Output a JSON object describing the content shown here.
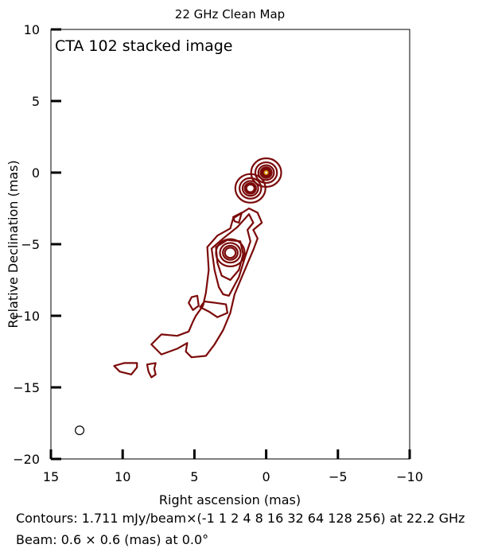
{
  "chart_data": {
    "type": "contour",
    "title": "22 GHz Clean Map",
    "annotation": "CTA 102 stacked image",
    "xlabel": "Right ascension (mas)",
    "ylabel": "Relative Declination (mas)",
    "xlim": [
      15,
      -10
    ],
    "ylim": [
      -20,
      10
    ],
    "xticks": [
      15,
      10,
      5,
      0,
      -5,
      -10
    ],
    "xtick_labels": [
      "15",
      "10",
      "5",
      "0",
      "−5",
      "−10"
    ],
    "yticks": [
      10,
      5,
      0,
      -5,
      -10,
      -15,
      -20
    ],
    "ytick_labels": [
      "10",
      "5",
      "0",
      "−5",
      "−10",
      "−15",
      "−20"
    ],
    "contour_base_mJy_per_beam": 1.711,
    "contour_levels": [
      -1,
      1,
      2,
      4,
      8,
      16,
      32,
      64,
      128,
      256
    ],
    "frequency_GHz": 22.2,
    "beam": {
      "major_mas": 0.6,
      "minor_mas": 0.6,
      "pa_deg": 0.0,
      "x": 13,
      "y": -18
    },
    "contour_color": "#7b0a0a",
    "peak_color": "#e0a000",
    "components": [
      {
        "x": 0.0,
        "y": 0.0,
        "rings": 7,
        "rmax": 1.05
      },
      {
        "x": 1.1,
        "y": -1.1,
        "rings": 5,
        "rmax": 1.05
      },
      {
        "x": 2.5,
        "y": -5.6,
        "rings": 4,
        "rmax": 1.0
      }
    ],
    "jet_contours": [
      [
        [
          2.3,
          -3.2
        ],
        [
          1.2,
          -2.5
        ],
        [
          0.6,
          -2.8
        ],
        [
          0.3,
          -3.5
        ],
        [
          0.9,
          -4.0
        ],
        [
          0.6,
          -4.6
        ],
        [
          0.9,
          -5.4
        ],
        [
          1.7,
          -7.3
        ],
        [
          2.2,
          -8.5
        ],
        [
          2.5,
          -9.8
        ],
        [
          3.0,
          -11.0
        ],
        [
          3.6,
          -12.0
        ],
        [
          4.2,
          -12.8
        ],
        [
          5.2,
          -12.9
        ],
        [
          5.6,
          -12.5
        ],
        [
          5.5,
          -11.9
        ],
        [
          6.2,
          -12.3
        ],
        [
          7.3,
          -12.7
        ],
        [
          8.0,
          -12.0
        ],
        [
          7.3,
          -11.3
        ],
        [
          6.2,
          -11.4
        ],
        [
          5.4,
          -11.1
        ],
        [
          5.1,
          -10.4
        ],
        [
          4.9,
          -10.0
        ],
        [
          4.4,
          -9.3
        ],
        [
          4.2,
          -8.4
        ],
        [
          4.0,
          -6.8
        ],
        [
          4.1,
          -5.2
        ],
        [
          3.4,
          -4.4
        ],
        [
          2.5,
          -3.9
        ],
        [
          2.3,
          -3.2
        ]
      ],
      [
        [
          1.2,
          -2.9
        ],
        [
          0.9,
          -3.5
        ],
        [
          1.3,
          -4.0
        ],
        [
          1.1,
          -4.8
        ],
        [
          1.5,
          -6.0
        ],
        [
          1.9,
          -7.3
        ],
        [
          2.6,
          -8.6
        ],
        [
          3.0,
          -8.5
        ],
        [
          3.3,
          -8.0
        ],
        [
          3.6,
          -6.8
        ],
        [
          3.8,
          -5.3
        ],
        [
          3.0,
          -4.6
        ],
        [
          2.0,
          -3.8
        ],
        [
          1.2,
          -2.9
        ]
      ],
      [
        [
          1.8,
          -4.8
        ],
        [
          1.6,
          -5.7
        ],
        [
          1.9,
          -6.8
        ],
        [
          2.5,
          -7.5
        ],
        [
          3.1,
          -7.2
        ],
        [
          3.4,
          -6.3
        ],
        [
          3.5,
          -5.2
        ],
        [
          2.7,
          -4.7
        ],
        [
          1.8,
          -4.8
        ]
      ],
      [
        [
          2.8,
          -9.2
        ],
        [
          3.5,
          -9.1
        ],
        [
          4.3,
          -9.0
        ],
        [
          4.6,
          -9.4
        ],
        [
          4.0,
          -9.7
        ],
        [
          3.4,
          -10.1
        ],
        [
          2.7,
          -9.8
        ],
        [
          2.8,
          -9.2
        ]
      ],
      [
        [
          4.8,
          -8.6
        ],
        [
          5.2,
          -8.7
        ],
        [
          5.4,
          -9.1
        ],
        [
          5.1,
          -9.6
        ],
        [
          4.7,
          -9.3
        ],
        [
          4.8,
          -8.6
        ]
      ],
      [
        [
          9.0,
          -13.3
        ],
        [
          9.9,
          -13.3
        ],
        [
          10.6,
          -13.5
        ],
        [
          10.2,
          -13.9
        ],
        [
          9.4,
          -14.1
        ],
        [
          9.0,
          -13.6
        ],
        [
          9.0,
          -13.3
        ]
      ],
      [
        [
          7.7,
          -13.3
        ],
        [
          8.3,
          -13.4
        ],
        [
          8.2,
          -13.9
        ],
        [
          8.0,
          -14.3
        ],
        [
          7.7,
          -14.1
        ],
        [
          7.8,
          -13.7
        ],
        [
          7.7,
          -13.3
        ]
      ],
      [
        [
          2.3,
          -3.1
        ],
        [
          1.7,
          -2.8
        ],
        [
          1.9,
          -3.5
        ],
        [
          2.2,
          -3.4
        ],
        [
          2.3,
          -3.1
        ]
      ]
    ],
    "footnote_contours": "Contours: 1.711 mJy/beam×(-1 1 2 4 8 16 32 64 128 256) at 22.2 GHz",
    "footnote_beam": "Beam: 0.6  ×  0.6 (mas) at 0.0°"
  }
}
